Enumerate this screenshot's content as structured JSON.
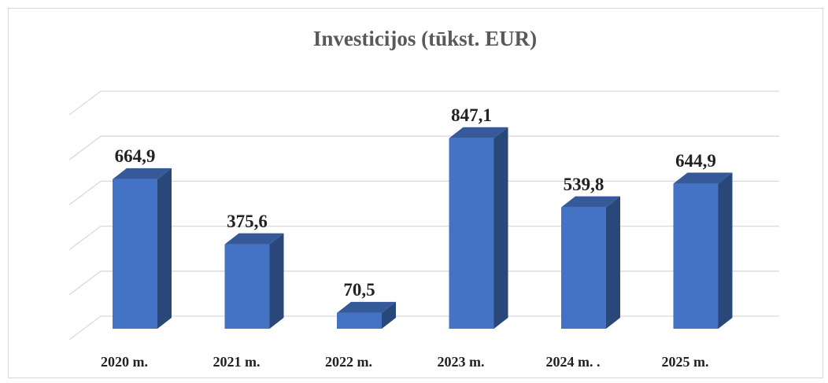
{
  "chart_data": {
    "type": "bar",
    "title": "Investicijos (tūkst. EUR)",
    "categories": [
      "2020 m.",
      "2021 m.",
      "2022 m.",
      "2023 m.",
      "2024 m. .",
      "2025 m."
    ],
    "values": [
      664.9,
      375.6,
      70.5,
      847.1,
      539.8,
      644.9
    ],
    "value_labels": [
      "664,9",
      "375,6",
      "70,5",
      "847,1",
      "539,8",
      "644,9"
    ],
    "color": "#4472c4",
    "ylim": [
      0,
      1000
    ],
    "yticks": [
      0,
      200,
      400,
      600,
      800,
      1000
    ],
    "grid": true
  }
}
